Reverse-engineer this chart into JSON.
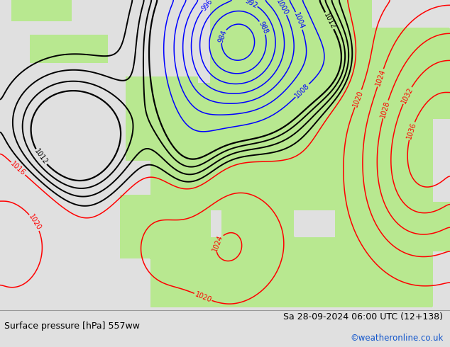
{
  "title_left": "Surface pressure [hPa] 557ww",
  "title_right": "Sa 28-09-2024 06:00 UTC (12+138)",
  "watermark": "©weatheronline.co.uk",
  "ocean_color": "#c8c8c8",
  "land_color": "#b8e890",
  "footer_bg": "#e0e0e0",
  "figsize": [
    6.34,
    4.9
  ],
  "dpi": 100
}
